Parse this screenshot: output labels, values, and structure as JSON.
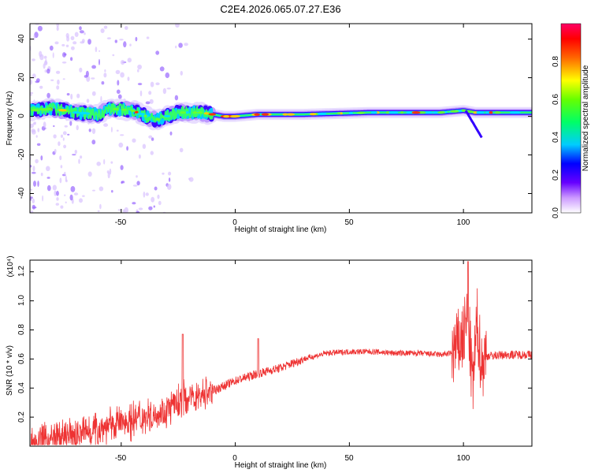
{
  "title": "C2E4.2026.065.07.27.E36",
  "chart_data": [
    {
      "type": "heatmap",
      "xlabel": "Height of straight line (km)",
      "ylabel": "Frequency (Hz)",
      "xlim": [
        -90,
        130
      ],
      "ylim": [
        -50,
        48
      ],
      "xticks": [
        -50,
        0,
        50,
        100
      ],
      "yticks": [
        -40,
        -20,
        0,
        20,
        40
      ],
      "grid": false,
      "colorbar": {
        "label": "Normalized spectral amplitude",
        "range": [
          0,
          1
        ],
        "ticks": [
          "0.0",
          "0.2",
          "0.4",
          "0.6",
          "0.8"
        ],
        "colors": [
          "#ffffff",
          "#cc99ff",
          "#6600ff",
          "#0000ff",
          "#00ccff",
          "#00ff66",
          "#66ff00",
          "#ffff00",
          "#ff6600",
          "#ff0000",
          "#ff0066"
        ]
      },
      "ridge": [
        {
          "x": -90,
          "y": 3
        },
        {
          "x": -80,
          "y": 4
        },
        {
          "x": -70,
          "y": 2
        },
        {
          "x": -60,
          "y": 1
        },
        {
          "x": -55,
          "y": 4
        },
        {
          "x": -45,
          "y": 3
        },
        {
          "x": -35,
          "y": -2
        },
        {
          "x": -25,
          "y": 2
        },
        {
          "x": -15,
          "y": 2
        },
        {
          "x": -5,
          "y": 0
        },
        {
          "x": 0,
          "y": 0
        },
        {
          "x": 10,
          "y": 1
        },
        {
          "x": 30,
          "y": 1
        },
        {
          "x": 60,
          "y": 2
        },
        {
          "x": 90,
          "y": 2
        },
        {
          "x": 100,
          "y": 3
        },
        {
          "x": 105,
          "y": 2
        },
        {
          "x": 130,
          "y": 2
        }
      ]
    },
    {
      "type": "line",
      "xlabel": "Height of straight line (km)",
      "ylabel": "SNR (10 * v/v)",
      "y_multiplier": "(x10⁴)",
      "xlim": [
        -90,
        130
      ],
      "ylim": [
        0,
        1.28
      ],
      "xticks": [
        -50,
        0,
        50,
        100
      ],
      "yticks": [
        0.2,
        0.4,
        0.6,
        0.8,
        1.0,
        1.2
      ],
      "color": "#ee3333",
      "grid": false,
      "series": [
        {
          "x": [
            -90,
            -80,
            -70,
            -60,
            -50,
            -40,
            -30,
            -25,
            -20,
            -10,
            0,
            10,
            20,
            30,
            40,
            50,
            60,
            70,
            80,
            90,
            95,
            100,
            102,
            104,
            106,
            108,
            110,
            120,
            130
          ],
          "y": [
            0.02,
            0.05,
            0.08,
            0.12,
            0.16,
            0.2,
            0.25,
            0.3,
            0.33,
            0.38,
            0.45,
            0.5,
            0.54,
            0.6,
            0.64,
            0.65,
            0.65,
            0.64,
            0.64,
            0.63,
            0.64,
            0.75,
            0.9,
            0.4,
            0.85,
            0.55,
            0.62,
            0.63,
            0.63
          ]
        }
      ]
    }
  ],
  "labels": {
    "heat_xticks": [
      "-50",
      "0",
      "50",
      "100"
    ],
    "heat_yticks": [
      "-40",
      "-20",
      "0",
      "20",
      "40"
    ],
    "line_xticks": [
      "-50",
      "0",
      "50",
      "100"
    ],
    "line_yticks": [
      "0.2",
      "0.4",
      "0.6",
      "0.8",
      "1.0",
      "1.2"
    ]
  }
}
